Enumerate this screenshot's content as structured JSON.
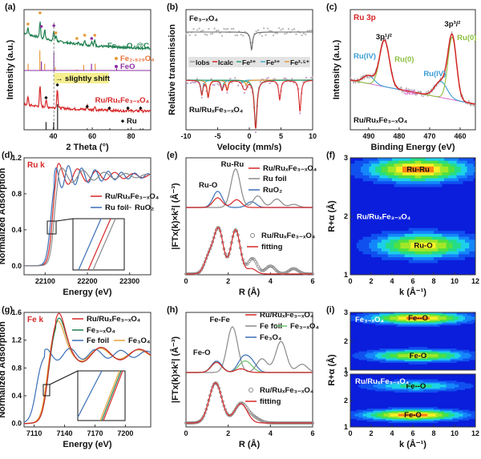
{
  "chart_data": [
    {
      "id": "a",
      "panel_label": "(a)",
      "type": "line",
      "title": "",
      "xlabel": "2 Theta (°)",
      "ylabel": "Intensity (a.u.)",
      "xlim": [
        25,
        90
      ],
      "xticks": [
        40,
        60,
        80
      ],
      "series": [
        {
          "name": "Fe3-xO4@C",
          "label": "Fe₃₋ₓO₄@C",
          "color": "#1e7f4e",
          "peaks": [
            27,
            33.2,
            35.6,
            40.3,
            41.5,
            53.1,
            56.1,
            59.7,
            61.3
          ],
          "heights": [
            0.35,
            0.9,
            0.55,
            0.6,
            0.3,
            0.15,
            0.3,
            0.25,
            0.35
          ]
        },
        {
          "name": "Fe2.929O4 reference",
          "label": "Fe₂.₉₂₉O₄",
          "color": "#e69a3a",
          "sticks": [
            27.1,
            33.1,
            35.6,
            41.0,
            52.0,
            55.6,
            61.5
          ],
          "heights": [
            0.3,
            0.9,
            0.3,
            0.15,
            0.05,
            0.25,
            0.3
          ]
        },
        {
          "name": "FeO reference",
          "label": "FeO",
          "color": "#8b2fa3",
          "sticks": [
            33.9,
            40.3,
            59.6,
            72.5
          ],
          "heights": [
            0.4,
            0.8,
            0.3,
            0.1
          ]
        },
        {
          "name": "Ru/RuxFe3-xO4",
          "label": "Ru/RuₓFe₃₋ₓO₄",
          "color": "#d62728",
          "peaks": [
            27,
            33.2,
            36.3,
            42.1,
            57.4,
            61.3,
            68.8,
            78.3,
            84.8
          ],
          "heights": [
            0.4,
            1.0,
            0.35,
            1.0,
            0.2,
            0.2,
            0.12,
            0.12,
            0.12
          ]
        },
        {
          "name": "Ru reference",
          "label": "Ru",
          "color": "#222222",
          "sticks": [
            36.3,
            40.2,
            42.2,
            57.4,
            69.0,
            78.4,
            84.7,
            86.0
          ],
          "heights": [
            0.3,
            0.3,
            1.0,
            0.05,
            0.05,
            0.05,
            0.05,
            0.05
          ]
        }
      ],
      "annotations": [
        "slightly shift"
      ],
      "dashed_line_x": 40.3
    },
    {
      "id": "b",
      "panel_label": "(b)",
      "type": "line",
      "xlabel": "Velocity (mm/s)",
      "ylabel": "Relative transmission",
      "xlim": [
        -10,
        10
      ],
      "xticks": [
        -10,
        -5,
        0,
        5,
        10
      ],
      "legend": [
        "Iobs",
        "Icalc",
        "Fe²⁺",
        "Fe³⁺",
        "Fe²·⁵⁺"
      ],
      "legend_colors": [
        "#999999",
        "#d62728",
        "#2e9e6e",
        "#3fb2c8",
        "#e69a3a"
      ],
      "samples": [
        {
          "name": "Fe3-xO4",
          "label": "Fe₃₋ₓO₄",
          "lines": [
            {
              "center": 0.35,
              "depth": 0.35
            }
          ]
        },
        {
          "name": "Ru/RuxFe3-xO4",
          "label": "Ru/RuₓFe₃₋ₓO₄",
          "sextet_Fe3": [
            -7.5,
            -4.3,
            -1.0,
            1.0,
            4.8,
            8.0
          ],
          "sextet_Fe25": [
            -6.5,
            -3.5,
            -0.5,
            1.5,
            4.8,
            8.0
          ],
          "doublet_Fe2": [
            1.0
          ],
          "depths": {
            "-7.5": 0.3,
            "-6.5": 0.35,
            "-4.3": 0.2,
            "-3.5": 0.2,
            "-0.8": 0.12,
            "1.0": 1.0,
            "4.8": 0.35,
            "8.0": 0.55
          }
        }
      ]
    },
    {
      "id": "c",
      "panel_label": "(c)",
      "type": "line",
      "title": "Ru 3p",
      "xlabel": "Binding Energy (eV)",
      "ylabel": "Intensity (a.u.)",
      "xlim": [
        496,
        455
      ],
      "xticks": [
        490,
        480,
        470,
        460
      ],
      "sample": "Ru/RuₓFe₃₋ₓO₄",
      "peaks": [
        {
          "label": "3p¹/²",
          "component": "Ru(0)",
          "center": 484.8,
          "color": "#8cbf3f"
        },
        {
          "label": "3p¹/²",
          "component": "Ru(IV)",
          "center": 490.0,
          "color": "#3a9bd5"
        },
        {
          "label": "3p³/²",
          "component": "Ru(0)",
          "center": 462.6,
          "color": "#8cbf3f"
        },
        {
          "label": "3p³/²",
          "component": "Ru(IV)",
          "center": 466.3,
          "color": "#3a9bd5"
        }
      ],
      "labels": [
        "Ru 3p",
        "3p¹/²",
        "3p³/²",
        "Ru(IV)",
        "Ru(0)",
        "Ru(IV)",
        "Ru(0)",
        "Sat."
      ],
      "series_colors": {
        "envelope": "#d62728",
        "raw": "#9a9a9a",
        "Ru0": "#8cbf3f",
        "RuIV": "#3a9bd5",
        "Sat": "#e67ad6"
      }
    },
    {
      "id": "d",
      "panel_label": "(d)",
      "type": "line",
      "title": "Ru k",
      "xlabel": "Energy (eV)",
      "ylabel": "Normalized Adsorption",
      "xlim": [
        22050,
        22350
      ],
      "ylim": [
        -0.1,
        1.2
      ],
      "xticks": [
        22100,
        22200,
        22300
      ],
      "yticks": [
        0.0,
        0.4,
        0.8,
        1.2
      ],
      "series": [
        {
          "name": "Ru/RuxFe3-xO4",
          "label": "Ru/RuₓFe₃₋ₓO₄",
          "color": "#d62728",
          "edge": 22117,
          "white_line": 1.11
        },
        {
          "name": "Ru foil",
          "label": "Ru foil",
          "color": "#3a6fb5",
          "edge": 22113,
          "white_line": 1.04
        },
        {
          "name": "RuO2",
          "label": "RuO₂",
          "color": "#8a8a8a",
          "edge": 22121,
          "white_line": 1.06
        }
      ]
    },
    {
      "id": "e",
      "panel_label": "(e)",
      "type": "line",
      "xlabel": "R (Å)",
      "ylabel": "|FTx(k)×k²| (Å⁻³)",
      "xlim": [
        0,
        6
      ],
      "xticks": [
        0,
        2,
        4,
        6
      ],
      "annotations": [
        "Ru-Ru",
        "Ru-O"
      ],
      "series": [
        {
          "name": "Ru/RuxFe3-xO4",
          "label": "Ru/RuₓFe₃₋ₓO₄",
          "color": "#d62728",
          "peaks": [
            [
              1.5,
              0.25
            ],
            [
              2.4,
              0.2
            ]
          ]
        },
        {
          "name": "Ru foil",
          "label": "Ru foil",
          "color": "#8a8a8a",
          "peaks": [
            [
              2.35,
              1.0
            ],
            [
              3.4,
              0.3
            ],
            [
              4.3,
              0.22
            ],
            [
              5.1,
              0.08
            ]
          ]
        },
        {
          "name": "RuO2",
          "label": "RuO₂",
          "color": "#3a6fb5",
          "peaks": [
            [
              1.5,
              0.42
            ],
            [
              3.1,
              0.15
            ]
          ]
        },
        {
          "name": "Ru/RuxFe3-xO4 data",
          "label": "Ru/RuₓFe₃₋ₓO₄",
          "color": "#8a8a8a",
          "marker": "circle",
          "peaks": [
            [
              1.1,
              0.4
            ],
            [
              1.55,
              1.0
            ],
            [
              2.35,
              1.0
            ],
            [
              3.15,
              0.35
            ],
            [
              4.0,
              0.18
            ],
            [
              5.1,
              0.12
            ]
          ]
        },
        {
          "name": "fitting",
          "label": "fitting",
          "color": "#d62728",
          "peaks": [
            [
              1.1,
              0.4
            ],
            [
              1.55,
              1.0
            ],
            [
              2.35,
              1.0
            ],
            [
              3.1,
              0.12
            ]
          ]
        }
      ]
    },
    {
      "id": "f",
      "panel_label": "(f)",
      "type": "heatmap",
      "xlabel": "k (Å⁻¹)",
      "ylabel": "R+α (Å)",
      "xlim": [
        0,
        12
      ],
      "ylim": [
        1,
        3
      ],
      "xticks": [
        0,
        2,
        4,
        6,
        8,
        10,
        12
      ],
      "yticks": [
        1,
        2,
        3
      ],
      "sample": "Ru/RuₓFe₃₋ₓO₄",
      "maxima": [
        {
          "label": "Ru-Ru",
          "k": 6.5,
          "R": 2.8,
          "intensity": 1.0
        },
        {
          "label": "Ru-O",
          "k": 7.0,
          "R": 1.5,
          "intensity": 0.85
        }
      ]
    },
    {
      "id": "g",
      "panel_label": "(g)",
      "type": "line",
      "title": "Fe k",
      "xlabel": "Energy (eV)",
      "ylabel": "Normalized Adsorption",
      "xlim": [
        7100,
        7225
      ],
      "ylim": [
        -0.05,
        1.6
      ],
      "xticks": [
        7110,
        7140,
        7170,
        7200
      ],
      "yticks": [
        0.0,
        0.4,
        0.8,
        1.2,
        1.6
      ],
      "series": [
        {
          "name": "Ru/RuxFe3-xO4",
          "label": "Ru/RuₓFe₃₋ₓO₄",
          "color": "#d62728",
          "edge": 7123,
          "white_line": 1.52
        },
        {
          "name": "Fe3-xO4",
          "label": "Fe₃₋ₓO₄",
          "color": "#1e7f4e",
          "edge": 7123,
          "white_line": 1.45
        },
        {
          "name": "Fe foil",
          "label": "Fe foil",
          "color": "#3a6fb5",
          "edge": 7112,
          "white_line": 1.02
        },
        {
          "name": "Fe3O4",
          "label": "Fe₃O₄",
          "color": "#e6a23a",
          "edge": 7122,
          "white_line": 1.42
        }
      ]
    },
    {
      "id": "h",
      "panel_label": "(h)",
      "type": "line",
      "xlabel": "R (Å)",
      "ylabel": "|FTx(k)×k²| (Å⁻³)",
      "xlim": [
        0,
        6
      ],
      "xticks": [
        0,
        2,
        4,
        6
      ],
      "annotations": [
        "Fe-Fe",
        "Fe-O"
      ],
      "series": [
        {
          "name": "Ru/RuxFe3-xO4",
          "label": "Ru/RuₓFe₃₋ₓO₄",
          "color": "#d62728",
          "peaks": [
            [
              1.45,
              0.22
            ],
            [
              2.6,
              0.08
            ]
          ]
        },
        {
          "name": "Fe foil",
          "label": "Fe foil",
          "color": "#8a8a8a",
          "peaks": [
            [
              2.2,
              1.0
            ],
            [
              3.6,
              0.3
            ],
            [
              4.5,
              0.68
            ],
            [
              5.5,
              0.18
            ]
          ]
        },
        {
          "name": "Fe3-xO4",
          "label": "Fe₃₋ₓO₄",
          "color": "#6cbf6c",
          "peaks": [
            [
              1.45,
              0.22
            ],
            [
              2.7,
              0.18
            ],
            [
              3.0,
              0.12
            ]
          ]
        },
        {
          "name": "Fe3O4",
          "label": "Fe₃O₄",
          "color": "#3a6fb5",
          "peaks": [
            [
              1.45,
              0.25
            ],
            [
              2.7,
              0.3
            ],
            [
              3.1,
              0.22
            ]
          ]
        },
        {
          "name": "Ru/RuxFe3-xO4 data",
          "label": "Ru/RuₓFe₃₋ₓO₄",
          "color": "#8a8a8a",
          "marker": "circle",
          "peaks": [
            [
              1.4,
              1.0
            ],
            [
              2.6,
              0.48
            ],
            [
              3.2,
              0.12
            ]
          ]
        },
        {
          "name": "fitting",
          "label": "fitting",
          "color": "#d62728",
          "peaks": [
            [
              1.4,
              1.0
            ],
            [
              2.6,
              0.48
            ]
          ]
        }
      ]
    },
    {
      "id": "i",
      "panel_label": "(i)",
      "type": "heatmap",
      "xlabel": "k (Å⁻¹)",
      "ylabel": "R+α (Å)",
      "xlim": [
        0,
        12
      ],
      "ylim": [
        1,
        3
      ],
      "xticks": [
        0,
        2,
        4,
        6,
        8,
        10,
        12
      ],
      "yticks": [
        1,
        2,
        3
      ],
      "subplots": [
        {
          "sample": "Fe₃₋ₓO₄",
          "maxima": [
            {
              "label": "Fe--O",
              "k": 6.5,
              "R": 2.8,
              "intensity": 0.95
            },
            {
              "label": "Fe-O",
              "k": 6.5,
              "R": 1.5,
              "intensity": 0.8
            }
          ]
        },
        {
          "sample": "Ru/RuₓFe₃₋ₓO₄",
          "maxima": [
            {
              "label": "Fe--O",
              "k": 6.3,
              "R": 2.55,
              "intensity": 0.5
            },
            {
              "label": "Fe-O",
              "k": 6.0,
              "R": 1.45,
              "intensity": 1.0
            }
          ]
        }
      ]
    }
  ]
}
